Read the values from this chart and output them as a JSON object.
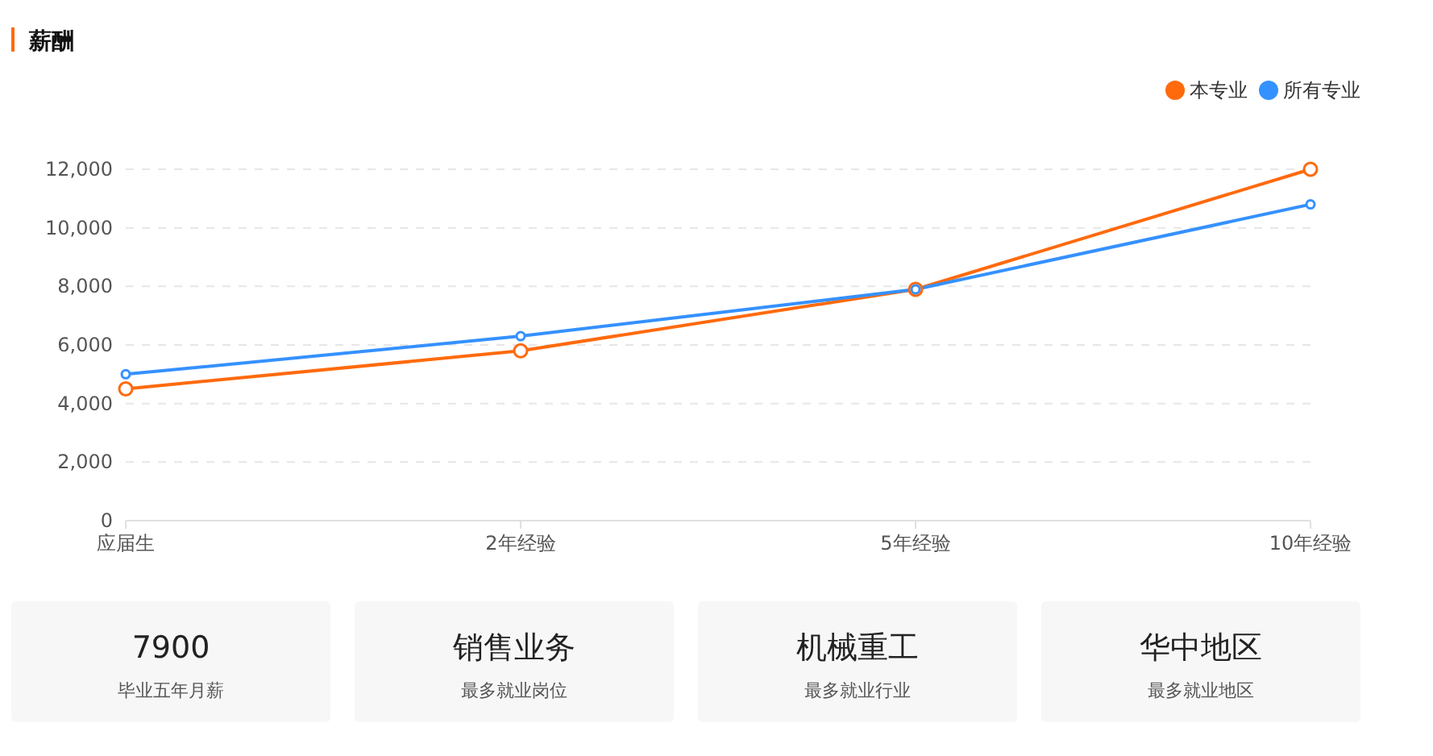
{
  "chart_data": [
    {
      "type": "line",
      "title": "薪酬",
      "categories": [
        "应届生",
        "2年经验",
        "5年经验",
        "10年经验"
      ],
      "series": [
        {
          "name": "本专业",
          "color": "#ff6a0d",
          "values": [
            4500,
            5800,
            7900,
            12000
          ]
        },
        {
          "name": "所有专业",
          "color": "#3591ff",
          "values": [
            5000,
            6300,
            7900,
            10800
          ]
        }
      ],
      "ylim": [
        0,
        12000
      ],
      "yticks": [
        0,
        {
          "value": 2000,
          "label": "2,000"
        },
        {
          "value": 4000,
          "label": "4,000"
        },
        {
          "value": 6000,
          "label": "6,000"
        },
        {
          "value": 8000,
          "label": "8,000"
        },
        {
          "value": 10000,
          "label": "10,000"
        },
        {
          "value": 12000,
          "label": "12,000"
        }
      ],
      "grid": "y",
      "legend": "top right",
      "marker": "circle",
      "line_style": "solid"
    },
    {
      "type": "other",
      "annotations": [
        "7900",
        "毕业五年月薪",
        "销售业务",
        "最多就业岗位",
        "机械重工",
        "最多就业行业",
        "华中地区",
        "最多就业地区"
      ]
    }
  ]
}
